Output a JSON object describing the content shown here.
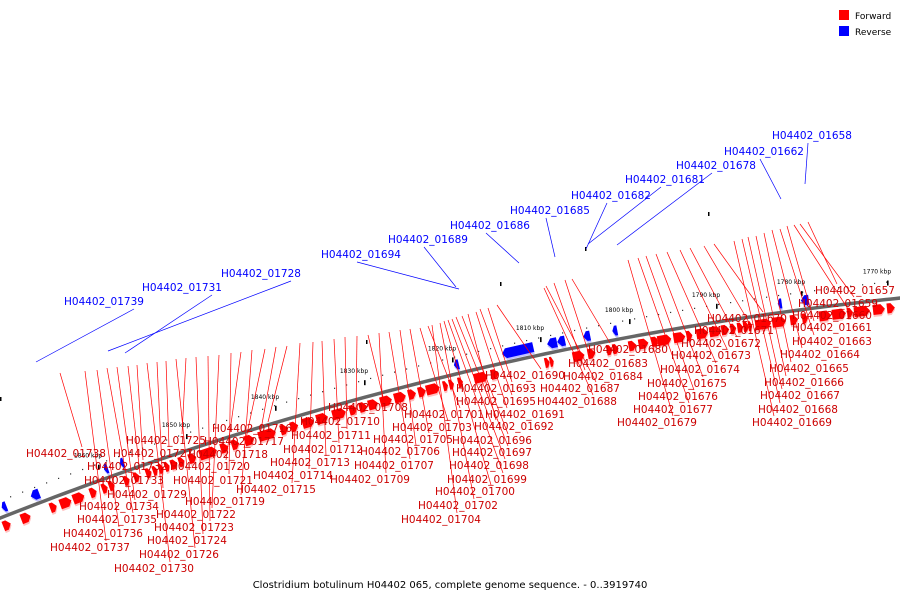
{
  "caption": "Clostridium botulinum H04402 065, complete genome sequence. - 0..3919740",
  "legend": {
    "forward": {
      "label": "Forward",
      "color": "#ff0000"
    },
    "reverse": {
      "label": "Reverse",
      "color": "#0000ff"
    }
  },
  "colors": {
    "forward": "#ff0000",
    "forward_shade": "#ffc0c0",
    "reverse": "#0000ff",
    "reverse_shade": "#c0c0ff",
    "axis": "#666666"
  },
  "scale_labels": [
    "1770 kbp",
    "1780 kbp",
    "1790 kbp",
    "1800 kbp",
    "1810 kbp",
    "1820 kbp",
    "1830 kbp",
    "1840 kbp",
    "1850 kbp",
    "1860 kbp"
  ],
  "reverse_labels": [
    "H04402_01658",
    "H04402_01662",
    "H04402_01678",
    "H04402_01681",
    "H04402_01682",
    "H04402_01685",
    "H04402_01686",
    "H04402_01689",
    "H04402_01694",
    "H04402_01728",
    "H04402_01731",
    "H04402_01739"
  ],
  "forward_labels": [
    "H04402_01657",
    "H04402_01659",
    "H04402_01660",
    "H04402_01661",
    "H04402_01663",
    "H04402_01664",
    "H04402_01665",
    "H04402_01666",
    "H04402_01667",
    "H04402_01668",
    "H04402_01669",
    "H04402_01670",
    "H04402_01671",
    "H04402_01672",
    "H04402_01673",
    "H04402_01674",
    "H04402_01675",
    "H04402_01676",
    "H04402_01677",
    "H04402_01679",
    "H04402_01680",
    "H04402_01683",
    "H04402_01684",
    "H04402_01687",
    "H04402_01688",
    "H04402_01690",
    "H04402_01693",
    "H04402_01695",
    "H04402_01691",
    "H04402_01692",
    "H04402_01696",
    "H04402_01697",
    "H04402_01698",
    "H04402_01699",
    "H04402_01700",
    "H04402_01702",
    "H04402_01704",
    "H04402_01701",
    "H04402_01703",
    "H04402_01705",
    "H04402_01706",
    "H04402_01707",
    "H04402_01709",
    "H04402_01708",
    "H04402_01710",
    "H04402_01711",
    "H04402_01712",
    "H04402_01713",
    "H04402_01714",
    "H04402_01715",
    "H04402_01716",
    "H04402_01717",
    "H04402_01718",
    "H04402_01719",
    "H04402_01720",
    "H04402_01721",
    "H04402_01722",
    "H04402_01723",
    "H04402_01724",
    "H04402_01725",
    "H04402_01726",
    "H04402_01727",
    "H04402_01729",
    "H04402_01730",
    "H04402_01732",
    "H04402_01733",
    "H04402_01734",
    "H04402_01735",
    "H04402_01736",
    "H04402_01737",
    "H04402_01738"
  ]
}
